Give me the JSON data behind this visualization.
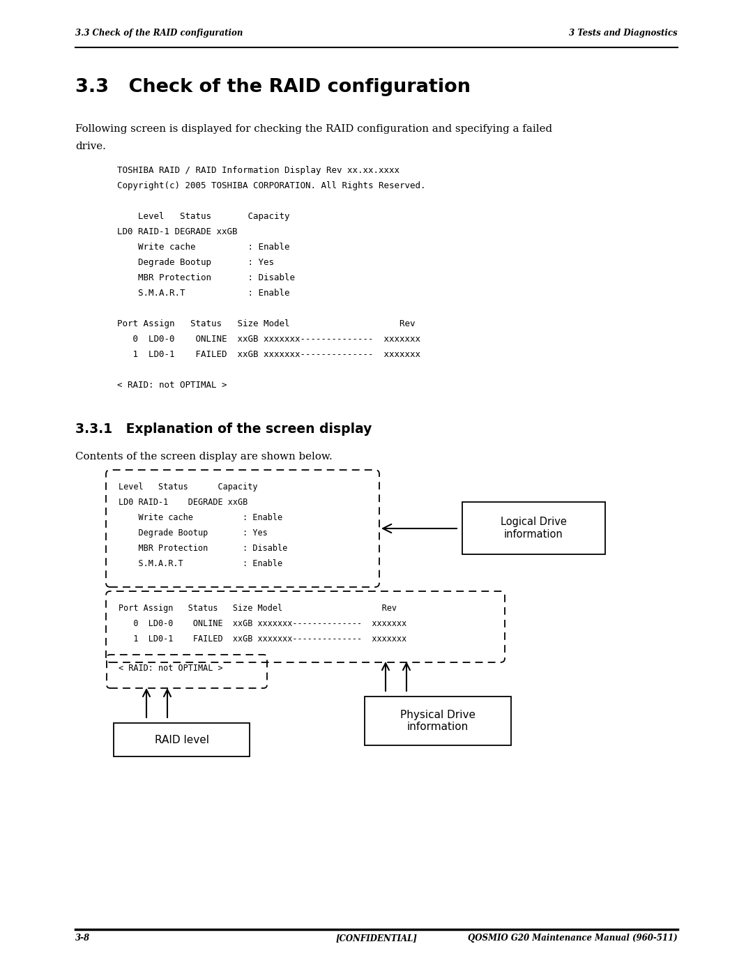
{
  "header_left": "3.3 Check of the RAID configuration",
  "header_right": "3 Tests and Diagnostics",
  "footer_left": "3-8",
  "footer_center": "[CONFIDENTIAL]",
  "footer_right": "QOSMIO G20 Maintenance Manual (960-511)",
  "section_title": "3.3   Check of the RAID configuration",
  "intro_line1": "Following screen is displayed for checking the RAID configuration and specifying a failed",
  "intro_line2": "drive.",
  "code_block": [
    "TOSHIBA RAID / RAID Information Display Rev xx.xx.xxxx",
    "Copyright(c) 2005 TOSHIBA CORPORATION. All Rights Reserved.",
    "",
    "    Level   Status       Capacity",
    "LD0 RAID-1 DEGRADE xxGB",
    "    Write cache          : Enable",
    "    Degrade Bootup       : Yes",
    "    MBR Protection       : Disable",
    "    S.M.A.R.T            : Enable",
    "",
    "Port Assign   Status   Size Model                     Rev",
    "   0  LD0-0    ONLINE  xxGB xxxxxxx--------------  xxxxxxx",
    "   1  LD0-1    FAILED  xxGB xxxxxxx--------------  xxxxxxx",
    "",
    "< RAID: not OPTIMAL >"
  ],
  "subsection_title": "3.3.1   Explanation of the screen display",
  "contents_text": "Contents of the screen display are shown below.",
  "diag_box1_lines": [
    "Level   Status      Capacity",
    "LD0 RAID-1    DEGRADE xxGB",
    "    Write cache          : Enable",
    "    Degrade Bootup       : Yes",
    "    MBR Protection       : Disable",
    "    S.M.A.R.T            : Enable"
  ],
  "diag_box2_lines": [
    "Port Assign   Status   Size Model                    Rev",
    "   0  LD0-0    ONLINE  xxGB xxxxxxx--------------  xxxxxxx",
    "   1  LD0-1    FAILED  xxGB xxxxxxx--------------  xxxxxxx"
  ],
  "diag_box3_lines": [
    "< RAID: not OPTIMAL >"
  ],
  "label_logical": "Logical Drive\ninformation",
  "label_physical": "Physical Drive\ninformation",
  "label_raid": "RAID level",
  "bg_color": "#ffffff"
}
